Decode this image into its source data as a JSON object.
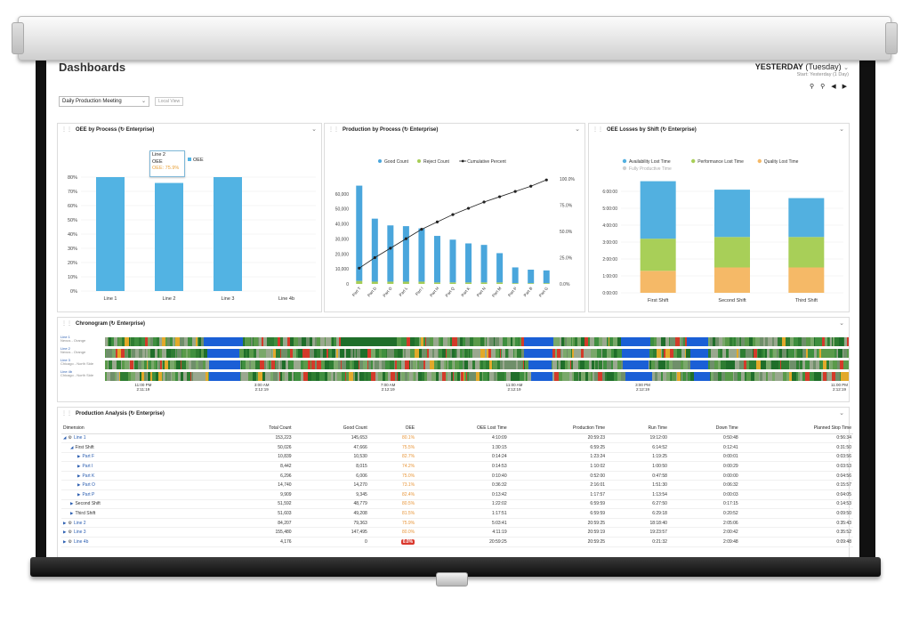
{
  "header": {
    "title": "Dashboards",
    "date_bold": "YESTERDAY",
    "date_rest": "(Tuesday)",
    "date_sub": "Start: Yesterday (1 Day)",
    "meeting_select": "Daily Production Meeting",
    "local_view": "Local View"
  },
  "colors": {
    "bar_blue": "#52b3e3",
    "good_blue": "#4aa6dc",
    "reject_green": "#a6cd55",
    "availability_blue": "#52b0e0",
    "performance_green": "#a8cf58",
    "quality_orange": "#f5b967",
    "chrono_green": "#2e7d32",
    "chrono_blue": "#1a5fd6",
    "chrono_red": "#d33a2a",
    "oee_orange": "#e8963a",
    "link_blue": "#2a5db0"
  },
  "oee_panel": {
    "title": "OEE by Process (↻ Enterprise)",
    "tooltip_line": "Line 2",
    "tooltip_label": "OEE",
    "tooltip_value": "OEE: 75.9%",
    "legend_label": "OEE"
  },
  "production_panel": {
    "title": "Production by Process (↻ Enterprise)"
  },
  "losses_panel": {
    "title": "OEE Losses by Shift (↻ Enterprise)"
  },
  "chronogram": {
    "title": "Chronogram (↻ Enterprise)",
    "rows": [
      {
        "name": "Line 1",
        "site": "Nexus - Orange"
      },
      {
        "name": "Line 2",
        "site": "Nexus - Orange"
      },
      {
        "name": "Line 3",
        "site": "Chicago - North Side"
      },
      {
        "name": "Line 4b",
        "site": "Chicago - North Side"
      }
    ],
    "ticks": [
      {
        "time": "11:00 PM",
        "date": "2:11:19"
      },
      {
        "time": "3:00 AM",
        "date": "2:12:19"
      },
      {
        "time": "7:00 AM",
        "date": "2:12:19"
      },
      {
        "time": "11:00 AM",
        "date": "2:12:19"
      },
      {
        "time": "3:00 PM",
        "date": "2:12:19"
      },
      {
        "time": "11:00 PM",
        "date": "2:12:19"
      }
    ]
  },
  "analysis": {
    "title": "Production Analysis (↻ Enterprise)",
    "columns": [
      "Dimension",
      "Total Count",
      "Good Count",
      "OEE",
      "OEE Lost Time",
      "Production Time",
      "Run Time",
      "Down Time",
      "Planned Stop Time"
    ],
    "rows": [
      {
        "dim": "Line 1",
        "level": 0,
        "icon": true,
        "open": true,
        "link": true,
        "total": "153,223",
        "good": "145,653",
        "oee": "80.1%",
        "lost": "4:10:09",
        "prod": "20:59:23",
        "run": "19:12:00",
        "down": "0:50:48",
        "stop": "0:56:34"
      },
      {
        "dim": "First Shift",
        "level": 1,
        "icon": false,
        "open": true,
        "link": false,
        "total": "50,026",
        "good": "47,666",
        "oee": "75.5%",
        "lost": "1:30:15",
        "prod": "6:59:25",
        "run": "6:14:52",
        "down": "0:12:41",
        "stop": "0:31:50"
      },
      {
        "dim": "Part F",
        "level": 2,
        "icon": false,
        "open": false,
        "link": true,
        "total": "10,839",
        "good": "10,530",
        "oee": "82.7%",
        "lost": "0:14:24",
        "prod": "1:23:24",
        "run": "1:19:25",
        "down": "0:00:01",
        "stop": "0:03:56"
      },
      {
        "dim": "Part I",
        "level": 2,
        "icon": false,
        "open": false,
        "link": true,
        "total": "8,442",
        "good": "8,015",
        "oee": "74.2%",
        "lost": "0:14:53",
        "prod": "1:10:02",
        "run": "1:00:50",
        "down": "0:00:29",
        "stop": "0:03:53"
      },
      {
        "dim": "Part K",
        "level": 2,
        "icon": false,
        "open": false,
        "link": true,
        "total": "6,296",
        "good": "6,006",
        "oee": "75.0%",
        "lost": "0:10:40",
        "prod": "0:52:00",
        "run": "0:47:58",
        "down": "0:00:00",
        "stop": "0:04:56"
      },
      {
        "dim": "Part O",
        "level": 2,
        "icon": false,
        "open": false,
        "link": true,
        "total": "14,740",
        "good": "14,270",
        "oee": "73.1%",
        "lost": "0:36:32",
        "prod": "2:16:01",
        "run": "1:51:30",
        "down": "0:06:32",
        "stop": "0:15:57"
      },
      {
        "dim": "Part P",
        "level": 2,
        "icon": false,
        "open": false,
        "link": true,
        "total": "9,909",
        "good": "9,345",
        "oee": "82.4%",
        "lost": "0:13:42",
        "prod": "1:17:57",
        "run": "1:13:54",
        "down": "0:00:03",
        "stop": "0:04:05"
      },
      {
        "dim": "Second Shift",
        "level": 1,
        "icon": false,
        "open": false,
        "link": false,
        "total": "51,592",
        "good": "48,779",
        "oee": "80.5%",
        "lost": "1:22:02",
        "prod": "6:59:59",
        "run": "6:27:50",
        "down": "0:17:15",
        "stop": "0:14:53"
      },
      {
        "dim": "Third Shift",
        "level": 1,
        "icon": false,
        "open": false,
        "link": false,
        "total": "51,603",
        "good": "49,208",
        "oee": "81.5%",
        "lost": "1:17:51",
        "prod": "6:59:59",
        "run": "6:29:18",
        "down": "0:20:52",
        "stop": "0:09:50"
      },
      {
        "dim": "Line 2",
        "level": 0,
        "icon": true,
        "open": false,
        "link": true,
        "total": "84,207",
        "good": "79,363",
        "oee": "75.9%",
        "lost": "5:03:41",
        "prod": "20:59:25",
        "run": "18:18:40",
        "down": "2:05:06",
        "stop": "0:35:43"
      },
      {
        "dim": "Line 3",
        "level": 0,
        "icon": true,
        "open": false,
        "link": true,
        "total": "155,480",
        "good": "147,495",
        "oee": "80.0%",
        "lost": "4:11:19",
        "prod": "20:59:19",
        "run": "19:23:57",
        "down": "2:00:42",
        "stop": "0:35:52"
      },
      {
        "dim": "Line 4b",
        "level": 0,
        "icon": true,
        "open": false,
        "link": true,
        "total": "4,176",
        "good": "0",
        "oee": "0.0%",
        "oee_badge": true,
        "lost": "20:59:25",
        "prod": "20:59:25",
        "run": "0:21:32",
        "down": "2:09:48",
        "stop": "0:09:48"
      }
    ]
  },
  "chart_data": [
    {
      "type": "bar",
      "categories": [
        "Line 1",
        "Line 2",
        "Line 3",
        "Line 4b"
      ],
      "values": [
        80.1,
        75.9,
        80.0,
        0.0
      ],
      "ylim": [
        0,
        80
      ],
      "yticks": [
        "0%",
        "10%",
        "20%",
        "30%",
        "40%",
        "50%",
        "60%",
        "70%",
        "80%"
      ],
      "grid": true
    },
    {
      "type": "bar",
      "categories": [
        "Part T",
        "Part D",
        "Part O",
        "Part L",
        "Part I",
        "Part H",
        "Part Q",
        "Part K",
        "Part N",
        "Part M",
        "Part P",
        "Part B",
        "Part G"
      ],
      "series": [
        {
          "name": "Good Count",
          "values": [
            63500,
            42000,
            37500,
            37000,
            35500,
            31000,
            28500,
            26000,
            25000,
            19500,
            10500,
            9000,
            8500
          ]
        },
        {
          "name": "Reject Count",
          "values": [
            2000,
            1500,
            1500,
            1500,
            1500,
            1000,
            1000,
            1000,
            1000,
            1000,
            500,
            500,
            500
          ]
        },
        {
          "name": "Cumulative Percent",
          "values": [
            15,
            25,
            34,
            43,
            52,
            59,
            66,
            72,
            78,
            83,
            88,
            93,
            99
          ]
        }
      ],
      "legend": "top",
      "ylim": [
        0,
        70000
      ],
      "yticks": [
        "0",
        "10,000",
        "20,000",
        "30,000",
        "40,000",
        "50,000",
        "60,000"
      ],
      "y2ticks": [
        "0.0%",
        "25.0%",
        "50.0%",
        "75.0%",
        "100.0%"
      ]
    },
    {
      "type": "bar",
      "categories": [
        "First Shift",
        "Second Shift",
        "Third Shift"
      ],
      "series": [
        {
          "name": "Quality Lost Time",
          "values": [
            1.3,
            1.5,
            1.5
          ]
        },
        {
          "name": "Performance Lost Time",
          "values": [
            1.9,
            1.8,
            1.8
          ]
        },
        {
          "name": "Availability Lost Time",
          "values": [
            3.4,
            2.8,
            2.3
          ]
        }
      ],
      "extra_legend": "Fully Productive Time",
      "legend": "top",
      "ylim": [
        0,
        7
      ],
      "yticks": [
        "0:00:00",
        "1:00:00",
        "2:00:00",
        "3:00:00",
        "4:00:00",
        "5:00:00",
        "6:00:00"
      ],
      "stacked": true
    }
  ]
}
